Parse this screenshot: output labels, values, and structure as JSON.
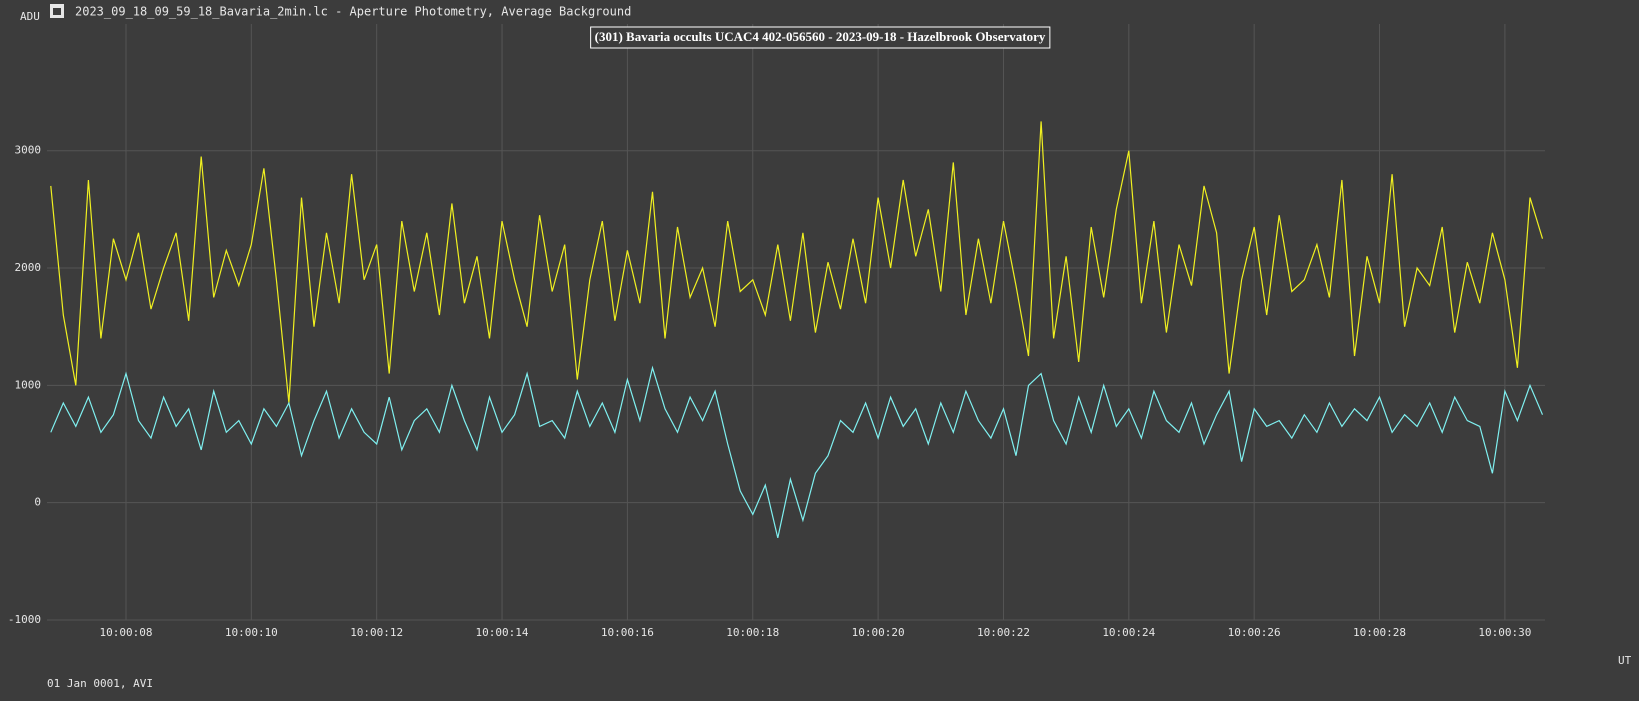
{
  "window_title": "2023_09_18_09_59_18_Bavaria_2min.lc - Aperture Photometry, Average Background",
  "chart_data": {
    "type": "line",
    "title": "(301) Bavaria occults UCAC4 402-056560 - 2023-09-18 - Hazelbrook Observatory",
    "ylabel": "ADU",
    "xlabel": "UT",
    "footer": "01 Jan 0001, AVI",
    "x": [
      "10:00:06.8",
      "10:00:07.0",
      "10:00:07.2",
      "10:00:07.4",
      "10:00:07.6",
      "10:00:07.8",
      "10:00:08.0",
      "10:00:08.2",
      "10:00:08.4",
      "10:00:08.6",
      "10:00:08.8",
      "10:00:09.0",
      "10:00:09.2",
      "10:00:09.4",
      "10:00:09.6",
      "10:00:09.8",
      "10:00:10.0",
      "10:00:10.2",
      "10:00:10.4",
      "10:00:10.6",
      "10:00:10.8",
      "10:00:11.0",
      "10:00:11.2",
      "10:00:11.4",
      "10:00:11.6",
      "10:00:11.8",
      "10:00:12.0",
      "10:00:12.2",
      "10:00:12.4",
      "10:00:12.6",
      "10:00:12.8",
      "10:00:13.0",
      "10:00:13.2",
      "10:00:13.4",
      "10:00:13.6",
      "10:00:13.8",
      "10:00:14.0",
      "10:00:14.2",
      "10:00:14.4",
      "10:00:14.6",
      "10:00:14.8",
      "10:00:15.0",
      "10:00:15.2",
      "10:00:15.4",
      "10:00:15.6",
      "10:00:15.8",
      "10:00:16.0",
      "10:00:16.2",
      "10:00:16.4",
      "10:00:16.6",
      "10:00:16.8",
      "10:00:17.0",
      "10:00:17.2",
      "10:00:17.4",
      "10:00:17.6",
      "10:00:17.8",
      "10:00:18.0",
      "10:00:18.2",
      "10:00:18.4",
      "10:00:18.6",
      "10:00:18.8",
      "10:00:19.0",
      "10:00:19.2",
      "10:00:19.4",
      "10:00:19.6",
      "10:00:19.8",
      "10:00:20.0",
      "10:00:20.2",
      "10:00:20.4",
      "10:00:20.6",
      "10:00:20.8",
      "10:00:21.0",
      "10:00:21.2",
      "10:00:21.4",
      "10:00:21.6",
      "10:00:21.8",
      "10:00:22.0",
      "10:00:22.2",
      "10:00:22.4",
      "10:00:22.6",
      "10:00:22.8",
      "10:00:23.0",
      "10:00:23.2",
      "10:00:23.4",
      "10:00:23.6",
      "10:00:23.8",
      "10:00:24.0",
      "10:00:24.2",
      "10:00:24.4",
      "10:00:24.6",
      "10:00:24.8",
      "10:00:25.0",
      "10:00:25.2",
      "10:00:25.4",
      "10:00:25.6",
      "10:00:25.8",
      "10:00:26.0",
      "10:00:26.2",
      "10:00:26.4",
      "10:00:26.6",
      "10:00:26.8",
      "10:00:27.0",
      "10:00:27.2",
      "10:00:27.4",
      "10:00:27.6",
      "10:00:27.8",
      "10:00:28.0",
      "10:00:28.2",
      "10:00:28.4",
      "10:00:28.6",
      "10:00:28.8",
      "10:00:29.0",
      "10:00:29.2",
      "10:00:29.4",
      "10:00:29.6",
      "10:00:29.8",
      "10:00:30.0",
      "10:00:30.2",
      "10:00:30.4",
      "10:00:30.6"
    ],
    "series": [
      {
        "color": "#f0f020",
        "values": [
          2700,
          1600,
          1000,
          2750,
          1400,
          2250,
          1900,
          2300,
          1650,
          2000,
          2300,
          1550,
          2950,
          1750,
          2150,
          1850,
          2200,
          2850,
          1900,
          850,
          2600,
          1500,
          2300,
          1700,
          2800,
          1900,
          2200,
          1100,
          2400,
          1800,
          2300,
          1600,
          2550,
          1700,
          2100,
          1400,
          2400,
          1900,
          1500,
          2450,
          1800,
          2200,
          1050,
          1900,
          2400,
          1550,
          2150,
          1700,
          2650,
          1400,
          2350,
          1750,
          2000,
          1500,
          2400,
          1800,
          1900,
          1600,
          2200,
          1550,
          2300,
          1450,
          2050,
          1650,
          2250,
          1700,
          2600,
          2000,
          2750,
          2100,
          2500,
          1800,
          2900,
          1600,
          2250,
          1700,
          2400,
          1850,
          1250,
          3250,
          1400,
          2100,
          1200,
          2350,
          1750,
          2500,
          3000,
          1700,
          2400,
          1450,
          2200,
          1850,
          2700,
          2300,
          1100,
          1900,
          2350,
          1600,
          2450,
          1800,
          1900,
          2200,
          1750,
          2750,
          1250,
          2100,
          1700,
          2800,
          1500,
          2000,
          1850,
          2350,
          1450,
          2050,
          1700,
          2300,
          1900,
          1150,
          2600,
          2250
        ]
      },
      {
        "color": "#7ff0f0",
        "values": [
          600,
          850,
          650,
          900,
          600,
          750,
          1100,
          700,
          550,
          900,
          650,
          800,
          450,
          950,
          600,
          700,
          500,
          800,
          650,
          850,
          400,
          700,
          950,
          550,
          800,
          600,
          500,
          900,
          450,
          700,
          800,
          600,
          1000,
          700,
          450,
          900,
          600,
          750,
          1100,
          650,
          700,
          550,
          950,
          650,
          850,
          600,
          1050,
          700,
          1150,
          800,
          600,
          900,
          700,
          950,
          500,
          100,
          -100,
          150,
          -300,
          200,
          -150,
          250,
          400,
          700,
          600,
          850,
          550,
          900,
          650,
          800,
          500,
          850,
          600,
          950,
          700,
          550,
          800,
          400,
          1000,
          1100,
          700,
          500,
          900,
          600,
          1000,
          650,
          800,
          550,
          950,
          700,
          600,
          850,
          500,
          750,
          950,
          350,
          800,
          650,
          700,
          550,
          750,
          600,
          850,
          650,
          800,
          700,
          900,
          600,
          750,
          650,
          850,
          600,
          900,
          700,
          650,
          250,
          950,
          700,
          1000,
          750
        ]
      }
    ],
    "xlim": [
      "10:00:06.74",
      "10:00:30.64"
    ],
    "xticks": [
      "10:00:08",
      "10:00:10",
      "10:00:12",
      "10:00:14",
      "10:00:16",
      "10:00:18",
      "10:00:20",
      "10:00:22",
      "10:00:24",
      "10:00:26",
      "10:00:28",
      "10:00:30"
    ],
    "ylim": [
      -1000,
      4080
    ],
    "yticks": [
      -1000,
      0,
      1000,
      2000,
      3000
    ],
    "grid": true
  }
}
